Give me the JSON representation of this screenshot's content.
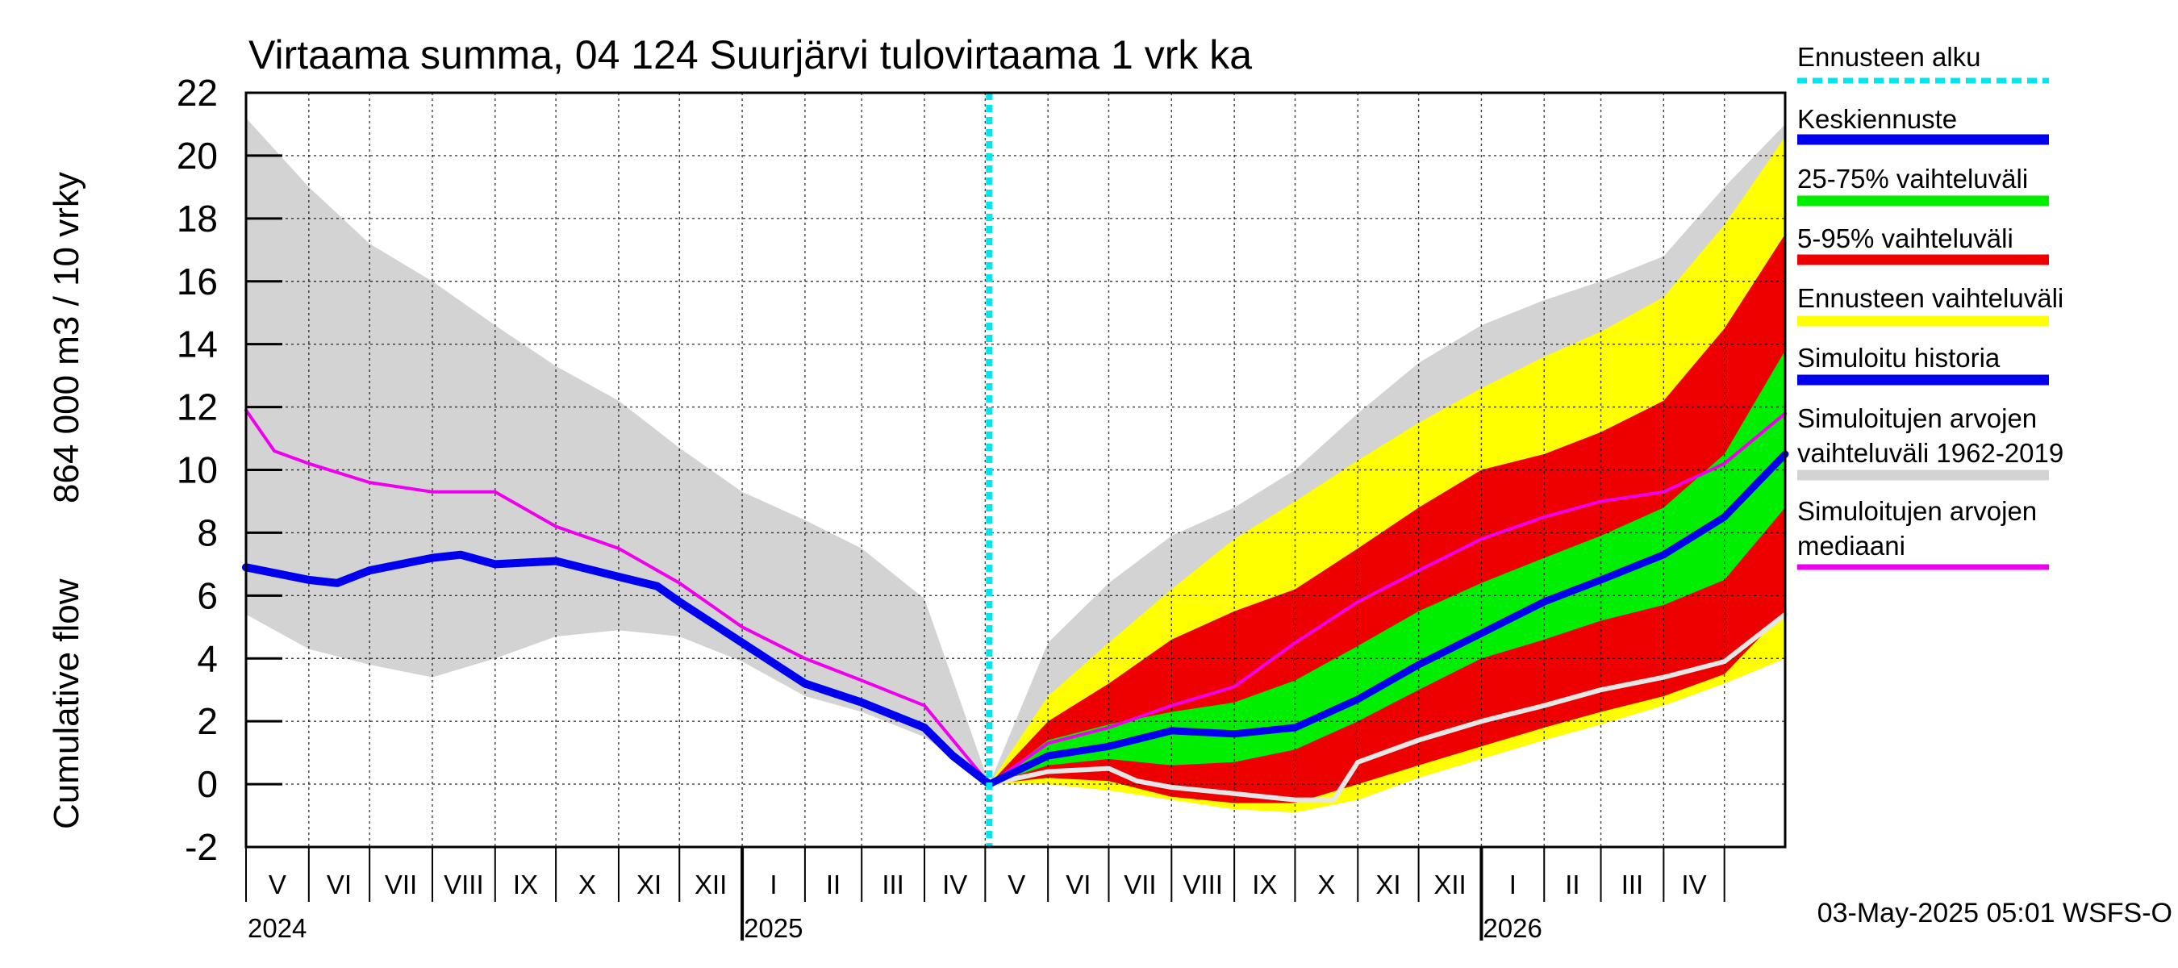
{
  "chart_data": {
    "type": "area",
    "title": "Virtaama summa, 04 124 Suurjärvi tulovirtaama 1 vrk ka",
    "ylabel_line1": "864 000 m3 / 10 vrky",
    "ylabel_line2": "Cumulative flow",
    "ylim": [
      -2,
      22
    ],
    "yticks": [
      -2,
      0,
      2,
      4,
      6,
      8,
      10,
      12,
      14,
      16,
      18,
      20,
      22
    ],
    "x_start": "2024-05-01",
    "x_end": "2026-05-31",
    "forecast_start": "2025-05-03",
    "grid": true,
    "legend_position": "right",
    "months": [
      "V",
      "VI",
      "VII",
      "VIII",
      "IX",
      "X",
      "XI",
      "XII",
      "I",
      "II",
      "III",
      "IV",
      "V",
      "VI",
      "VII",
      "VIII",
      "IX",
      "X",
      "XI",
      "XII",
      "I",
      "II",
      "III",
      "IV"
    ],
    "years": [
      "2024",
      "2025",
      "2026"
    ],
    "footer": "03-May-2025 05:01 WSFS-O",
    "colors": {
      "forecast_start": "#00e5ee",
      "mean_forecast": "#0000ee",
      "p25_75": "#00ee00",
      "p5_95": "#ee0000",
      "forecast_range": "#ffff00",
      "simulated_history": "#0000ee",
      "sim_range": "#d3d3d3",
      "sim_median": "#ee00ee",
      "min_line": "#e6e6e6"
    },
    "legend": [
      {
        "key": "forecast_start",
        "label": "Ennusteen alku"
      },
      {
        "key": "mean_forecast",
        "label": "Keskiennuste"
      },
      {
        "key": "p25_75",
        "label": "25-75% vaihteluväli"
      },
      {
        "key": "p5_95",
        "label": "5-95% vaihteluväli"
      },
      {
        "key": "forecast_range",
        "label": "Ennusteen vaihteluväli"
      },
      {
        "key": "simulated_history",
        "label": "Simuloitu historia"
      },
      {
        "key": "sim_range",
        "label": "Simuloitujen arvojen vaihteluväli 1962-2019"
      },
      {
        "key": "sim_median",
        "label": "Simuloitujen arvojen mediaani"
      }
    ],
    "series": {
      "sim_range_upper": [
        [
          "2024-05-01",
          21.2
        ],
        [
          "2024-06-01",
          19.0
        ],
        [
          "2024-07-01",
          17.2
        ],
        [
          "2024-08-01",
          16.0
        ],
        [
          "2024-09-01",
          14.6
        ],
        [
          "2024-10-01",
          13.3
        ],
        [
          "2024-11-01",
          12.2
        ],
        [
          "2024-12-01",
          10.7
        ],
        [
          "2025-01-01",
          9.3
        ],
        [
          "2025-02-01",
          8.4
        ],
        [
          "2025-03-01",
          7.5
        ],
        [
          "2025-04-01",
          5.9
        ],
        [
          "2025-05-03",
          0.0
        ],
        [
          "2025-06-01",
          4.5
        ],
        [
          "2025-07-01",
          6.4
        ],
        [
          "2025-08-01",
          7.9
        ],
        [
          "2025-09-01",
          8.8
        ],
        [
          "2025-10-01",
          10.0
        ],
        [
          "2025-11-01",
          11.8
        ],
        [
          "2025-12-01",
          13.4
        ],
        [
          "2026-01-01",
          14.6
        ],
        [
          "2026-02-01",
          15.4
        ],
        [
          "2026-03-01",
          16.0
        ],
        [
          "2026-04-01",
          16.8
        ],
        [
          "2026-05-01",
          19.0
        ],
        [
          "2026-05-31",
          21.0
        ]
      ],
      "sim_range_lower": [
        [
          "2024-05-01",
          5.4
        ],
        [
          "2024-06-01",
          4.3
        ],
        [
          "2024-07-01",
          3.8
        ],
        [
          "2024-08-01",
          3.4
        ],
        [
          "2024-09-01",
          4.0
        ],
        [
          "2024-10-01",
          4.7
        ],
        [
          "2024-11-01",
          4.9
        ],
        [
          "2024-12-01",
          4.7
        ],
        [
          "2025-01-01",
          3.9
        ],
        [
          "2025-02-01",
          2.8
        ],
        [
          "2025-03-01",
          2.3
        ],
        [
          "2025-04-01",
          1.5
        ],
        [
          "2025-05-03",
          0.0
        ],
        [
          "2025-06-01",
          0.0
        ],
        [
          "2025-07-01",
          0.0
        ],
        [
          "2025-08-01",
          -0.1
        ],
        [
          "2025-09-01",
          -0.7
        ],
        [
          "2025-10-01",
          -0.8
        ],
        [
          "2025-11-01",
          -0.3
        ],
        [
          "2025-12-01",
          0.5
        ],
        [
          "2026-01-01",
          1.0
        ],
        [
          "2026-02-01",
          1.4
        ],
        [
          "2026-03-01",
          1.9
        ],
        [
          "2026-04-01",
          2.6
        ],
        [
          "2026-05-01",
          3.3
        ],
        [
          "2026-05-31",
          4.0
        ]
      ],
      "forecast_range_upper": [
        [
          "2025-05-03",
          0.0
        ],
        [
          "2025-06-01",
          2.8
        ],
        [
          "2025-07-01",
          4.5
        ],
        [
          "2025-08-01",
          6.2
        ],
        [
          "2025-09-01",
          7.8
        ],
        [
          "2025-10-01",
          9.0
        ],
        [
          "2025-11-01",
          10.3
        ],
        [
          "2025-12-01",
          11.5
        ],
        [
          "2026-01-01",
          12.6
        ],
        [
          "2026-02-01",
          13.6
        ],
        [
          "2026-03-01",
          14.4
        ],
        [
          "2026-04-01",
          15.5
        ],
        [
          "2026-05-01",
          17.8
        ],
        [
          "2026-05-31",
          20.6
        ]
      ],
      "forecast_range_lower": [
        [
          "2025-05-03",
          0.0
        ],
        [
          "2025-06-01",
          0.0
        ],
        [
          "2025-07-01",
          -0.2
        ],
        [
          "2025-08-01",
          -0.5
        ],
        [
          "2025-09-01",
          -0.8
        ],
        [
          "2025-10-01",
          -0.9
        ],
        [
          "2025-11-01",
          -0.5
        ],
        [
          "2025-12-01",
          0.2
        ],
        [
          "2026-01-01",
          0.8
        ],
        [
          "2026-02-01",
          1.4
        ],
        [
          "2026-03-01",
          1.9
        ],
        [
          "2026-04-01",
          2.5
        ],
        [
          "2026-05-01",
          3.2
        ],
        [
          "2026-05-31",
          4.0
        ]
      ],
      "p5_95_upper": [
        [
          "2025-05-03",
          0.0
        ],
        [
          "2025-06-01",
          2.0
        ],
        [
          "2025-07-01",
          3.2
        ],
        [
          "2025-08-01",
          4.6
        ],
        [
          "2025-09-01",
          5.5
        ],
        [
          "2025-10-01",
          6.2
        ],
        [
          "2025-11-01",
          7.5
        ],
        [
          "2025-12-01",
          8.8
        ],
        [
          "2026-01-01",
          10.0
        ],
        [
          "2026-02-01",
          10.5
        ],
        [
          "2026-03-01",
          11.2
        ],
        [
          "2026-04-01",
          12.2
        ],
        [
          "2026-05-01",
          14.5
        ],
        [
          "2026-05-31",
          17.5
        ]
      ],
      "p5_95_lower": [
        [
          "2025-05-03",
          0.0
        ],
        [
          "2025-06-01",
          0.2
        ],
        [
          "2025-07-01",
          0.1
        ],
        [
          "2025-08-01",
          -0.4
        ],
        [
          "2025-09-01",
          -0.6
        ],
        [
          "2025-10-01",
          -0.6
        ],
        [
          "2025-11-01",
          0.0
        ],
        [
          "2025-12-01",
          0.6
        ],
        [
          "2026-01-01",
          1.2
        ],
        [
          "2026-02-01",
          1.8
        ],
        [
          "2026-03-01",
          2.3
        ],
        [
          "2026-04-01",
          2.8
        ],
        [
          "2026-05-01",
          3.5
        ],
        [
          "2026-05-31",
          5.5
        ]
      ],
      "p25_75_upper": [
        [
          "2025-05-03",
          0.0
        ],
        [
          "2025-06-01",
          1.4
        ],
        [
          "2025-07-01",
          1.9
        ],
        [
          "2025-08-01",
          2.3
        ],
        [
          "2025-09-01",
          2.6
        ],
        [
          "2025-10-01",
          3.3
        ],
        [
          "2025-11-01",
          4.4
        ],
        [
          "2025-12-01",
          5.5
        ],
        [
          "2026-01-01",
          6.4
        ],
        [
          "2026-02-01",
          7.2
        ],
        [
          "2026-03-01",
          7.9
        ],
        [
          "2026-04-01",
          8.8
        ],
        [
          "2026-05-01",
          10.5
        ],
        [
          "2026-05-31",
          13.8
        ]
      ],
      "p25_75_lower": [
        [
          "2025-05-03",
          0.0
        ],
        [
          "2025-06-01",
          0.6
        ],
        [
          "2025-07-01",
          0.8
        ],
        [
          "2025-08-01",
          0.6
        ],
        [
          "2025-09-01",
          0.7
        ],
        [
          "2025-10-01",
          1.1
        ],
        [
          "2025-11-01",
          2.0
        ],
        [
          "2025-12-01",
          3.0
        ],
        [
          "2026-01-01",
          4.0
        ],
        [
          "2026-02-01",
          4.6
        ],
        [
          "2026-03-01",
          5.2
        ],
        [
          "2026-04-01",
          5.7
        ],
        [
          "2026-05-01",
          6.5
        ],
        [
          "2026-05-31",
          8.8
        ]
      ],
      "simulated_history": [
        [
          "2024-05-01",
          6.9
        ],
        [
          "2024-06-01",
          6.5
        ],
        [
          "2024-06-15",
          6.4
        ],
        [
          "2024-07-01",
          6.8
        ],
        [
          "2024-08-01",
          7.2
        ],
        [
          "2024-08-15",
          7.3
        ],
        [
          "2024-09-01",
          7.0
        ],
        [
          "2024-10-01",
          7.1
        ],
        [
          "2024-11-01",
          6.6
        ],
        [
          "2024-11-20",
          6.3
        ],
        [
          "2024-12-01",
          5.8
        ],
        [
          "2025-01-01",
          4.5
        ],
        [
          "2025-02-01",
          3.2
        ],
        [
          "2025-03-01",
          2.6
        ],
        [
          "2025-04-01",
          1.8
        ],
        [
          "2025-04-15",
          0.9
        ],
        [
          "2025-05-03",
          0.0
        ]
      ],
      "mean_forecast": [
        [
          "2025-05-03",
          0.0
        ],
        [
          "2025-06-01",
          0.9
        ],
        [
          "2025-07-01",
          1.2
        ],
        [
          "2025-08-01",
          1.7
        ],
        [
          "2025-09-01",
          1.6
        ],
        [
          "2025-10-01",
          1.8
        ],
        [
          "2025-11-01",
          2.7
        ],
        [
          "2025-12-01",
          3.8
        ],
        [
          "2026-01-01",
          4.8
        ],
        [
          "2026-02-01",
          5.8
        ],
        [
          "2026-03-01",
          6.5
        ],
        [
          "2026-04-01",
          7.3
        ],
        [
          "2026-05-01",
          8.5
        ],
        [
          "2026-05-31",
          10.5
        ]
      ],
      "sim_median": [
        [
          "2024-05-01",
          11.9
        ],
        [
          "2024-05-15",
          10.6
        ],
        [
          "2024-06-01",
          10.2
        ],
        [
          "2024-07-01",
          9.6
        ],
        [
          "2024-08-01",
          9.3
        ],
        [
          "2024-09-01",
          9.3
        ],
        [
          "2024-10-01",
          8.2
        ],
        [
          "2024-11-01",
          7.5
        ],
        [
          "2024-12-01",
          6.4
        ],
        [
          "2025-01-01",
          5.0
        ],
        [
          "2025-02-01",
          4.0
        ],
        [
          "2025-03-01",
          3.3
        ],
        [
          "2025-04-01",
          2.5
        ],
        [
          "2025-05-03",
          0.0
        ],
        [
          "2025-06-01",
          1.3
        ],
        [
          "2025-07-01",
          1.8
        ],
        [
          "2025-08-01",
          2.5
        ],
        [
          "2025-09-01",
          3.1
        ],
        [
          "2025-10-01",
          4.5
        ],
        [
          "2025-11-01",
          5.8
        ],
        [
          "2025-12-01",
          6.8
        ],
        [
          "2026-01-01",
          7.8
        ],
        [
          "2026-02-01",
          8.5
        ],
        [
          "2026-03-01",
          9.0
        ],
        [
          "2026-04-01",
          9.3
        ],
        [
          "2026-05-01",
          10.2
        ],
        [
          "2026-05-31",
          11.8
        ]
      ],
      "min_line": [
        [
          "2025-05-03",
          0.0
        ],
        [
          "2025-06-01",
          0.4
        ],
        [
          "2025-07-01",
          0.5
        ],
        [
          "2025-07-15",
          0.1
        ],
        [
          "2025-08-01",
          -0.1
        ],
        [
          "2025-09-01",
          -0.3
        ],
        [
          "2025-10-01",
          -0.5
        ],
        [
          "2025-10-20",
          -0.5
        ],
        [
          "2025-11-01",
          0.7
        ],
        [
          "2025-12-01",
          1.4
        ],
        [
          "2026-01-01",
          2.0
        ],
        [
          "2026-02-01",
          2.5
        ],
        [
          "2026-03-01",
          3.0
        ],
        [
          "2026-04-01",
          3.4
        ],
        [
          "2026-05-01",
          3.9
        ],
        [
          "2026-05-31",
          5.4
        ]
      ]
    }
  }
}
